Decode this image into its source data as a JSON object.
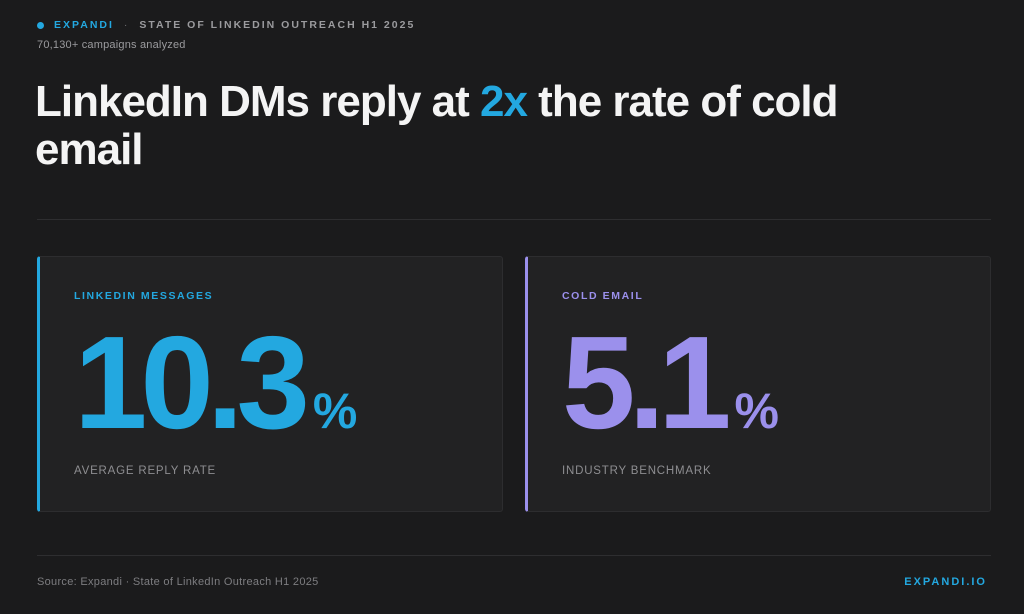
{
  "header": {
    "brand": "EXPANDI",
    "separator": "·",
    "report": "STATE OF LINKEDIN OUTREACH H1 2025",
    "subline": "70,130+ campaigns analyzed"
  },
  "headline": {
    "before": "LinkedIn DMs reply at ",
    "highlight": "2x",
    "after": " the rate of cold email"
  },
  "cards": [
    {
      "label": "LINKEDIN MESSAGES",
      "value": "10.3",
      "unit": "%",
      "caption": "AVERAGE REPLY RATE",
      "accent_color": "#23a8e0"
    },
    {
      "label": "COLD EMAIL",
      "value": "5.1",
      "unit": "%",
      "caption": "INDUSTRY BENCHMARK",
      "accent_color": "#9b90ec"
    }
  ],
  "footer": {
    "source": "Source: Expandi · State of LinkedIn Outreach H1 2025",
    "site": "EXPANDI.IO"
  },
  "colors": {
    "background": "#1b1b1c",
    "accent_blue": "#23a8e0",
    "accent_purple": "#9b90ec"
  }
}
